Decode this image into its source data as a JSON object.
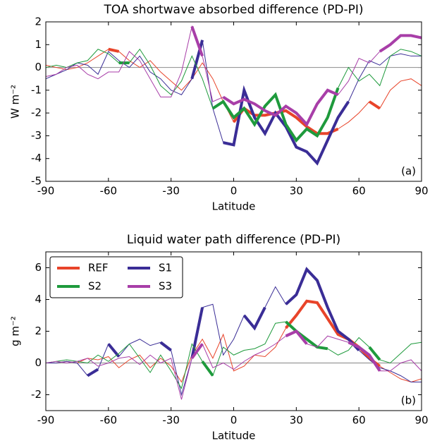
{
  "chart_data": [
    {
      "type": "line",
      "title": "TOA shortwave absorbed difference (PD-PI)",
      "xlabel": "Latitude",
      "ylabel": "W m⁻²",
      "annotation": "(a)",
      "x": [
        -90,
        -85,
        -80,
        -75,
        -70,
        -65,
        -60,
        -55,
        -50,
        -45,
        -40,
        -35,
        -30,
        -25,
        -20,
        -15,
        -10,
        -5,
        0,
        5,
        10,
        15,
        20,
        25,
        30,
        35,
        40,
        45,
        50,
        55,
        60,
        65,
        70,
        75,
        80,
        85,
        90
      ],
      "xlim": [
        -90,
        90
      ],
      "xticks": [
        -90,
        -60,
        -30,
        0,
        30,
        60,
        90
      ],
      "ylim": [
        -5,
        2
      ],
      "yticks": [
        -5,
        -4,
        -3,
        -2,
        -1,
        0,
        1,
        2
      ],
      "zero_line": true,
      "legend": false,
      "series": [
        {
          "name": "REF",
          "color": "#e8442a",
          "values": [
            0.1,
            0,
            -0.1,
            0,
            0.2,
            0.5,
            0.8,
            0.7,
            0.3,
            0,
            0.3,
            -0.2,
            -0.6,
            -1.0,
            -0.5,
            0.2,
            -0.5,
            -1.5,
            -2.4,
            -1.8,
            -2.1,
            -2.1,
            -2.0,
            -1.9,
            -2.2,
            -2.6,
            -2.9,
            -2.9,
            -2.7,
            -2.4,
            -2.0,
            -1.5,
            -1.8,
            -1.0,
            -0.6,
            -0.5,
            -0.8
          ],
          "bold": [
            [
              -60,
              -55
            ],
            [
              0,
              50
            ],
            [
              65,
              70
            ]
          ]
        },
        {
          "name": "S1",
          "color": "#3a2d96",
          "values": [
            -0.5,
            -0.3,
            -0.1,
            0.2,
            0.1,
            -0.3,
            0.7,
            0.3,
            0,
            0.5,
            -0.2,
            -0.5,
            -1.0,
            -1.2,
            -0.5,
            1.2,
            -1.8,
            -3.3,
            -3.4,
            -1.0,
            -2.2,
            -2.9,
            -2.0,
            -2.6,
            -3.5,
            -3.7,
            -4.2,
            -3.2,
            -2.2,
            -1.5,
            -0.5,
            0.3,
            0.1,
            0.5,
            0.6,
            0.5,
            0.5
          ],
          "bold": [
            [
              -20,
              -15
            ],
            [
              -5,
              55
            ]
          ]
        },
        {
          "name": "S2",
          "color": "#1e9a3c",
          "values": [
            0,
            0.1,
            0,
            0.2,
            0.3,
            0.8,
            0.6,
            0.2,
            0.2,
            0.8,
            0.1,
            -0.8,
            -1.2,
            -0.6,
            0.5,
            -0.5,
            -1.8,
            -1.5,
            -2.2,
            -1.8,
            -2.5,
            -1.7,
            -1.2,
            -2.5,
            -3.2,
            -2.7,
            -3.0,
            -2.2,
            -0.9,
            0,
            -0.6,
            -0.3,
            -0.8,
            0.5,
            0.8,
            0.7,
            0.5
          ],
          "bold": [
            [
              -55,
              -50
            ],
            [
              -10,
              50
            ]
          ]
        },
        {
          "name": "S3",
          "color": "#a83ea8",
          "values": [
            -0.4,
            -0.3,
            0,
            0.1,
            -0.3,
            -0.5,
            -0.2,
            -0.2,
            0.7,
            0.3,
            -0.5,
            -1.3,
            -1.3,
            -0.2,
            1.8,
            0.5,
            -1.5,
            -1.3,
            -1.6,
            -1.4,
            -1.6,
            -1.9,
            -2.1,
            -1.7,
            -2.0,
            -2.5,
            -1.6,
            -1.0,
            -1.2,
            -0.6,
            0.4,
            0.2,
            0.7,
            1.0,
            1.4,
            1.4,
            1.3
          ],
          "bold": [
            [
              -20,
              -15
            ],
            [
              -5,
              50
            ],
            [
              70,
              90
            ]
          ]
        }
      ]
    },
    {
      "type": "line",
      "title": "Liquid water path difference (PD-PI)",
      "xlabel": "Latitude",
      "ylabel": "g m⁻²",
      "annotation": "(b)",
      "x": [
        -90,
        -85,
        -80,
        -75,
        -70,
        -65,
        -60,
        -55,
        -50,
        -45,
        -40,
        -35,
        -30,
        -25,
        -20,
        -15,
        -10,
        -5,
        0,
        5,
        10,
        15,
        20,
        25,
        30,
        35,
        40,
        45,
        50,
        55,
        60,
        65,
        70,
        75,
        80,
        85,
        90
      ],
      "xlim": [
        -90,
        90
      ],
      "xticks": [
        -90,
        -60,
        -30,
        0,
        30,
        60,
        90
      ],
      "ylim": [
        -3,
        7
      ],
      "yticks": [
        -2,
        0,
        2,
        4,
        6
      ],
      "zero_line": true,
      "legend": "upper left",
      "series": [
        {
          "name": "REF",
          "color": "#e8442a",
          "values": [
            0,
            0,
            0.1,
            0,
            0.3,
            0.2,
            0.4,
            -0.3,
            0.2,
            0.5,
            -0.3,
            0.3,
            -0.2,
            -1.2,
            0.5,
            1.5,
            0.3,
            1.8,
            -0.5,
            -0.2,
            0.5,
            0.4,
            1.0,
            2.2,
            3.0,
            3.9,
            3.8,
            2.8,
            1.8,
            1.5,
            1.0,
            0.3,
            -0.2,
            -0.6,
            -1.0,
            -1.2,
            -1.0
          ],
          "bold": [
            [
              25,
              70
            ]
          ]
        },
        {
          "name": "S1",
          "color": "#3a2d96",
          "values": [
            0,
            0,
            0.1,
            0,
            -0.8,
            -0.4,
            1.2,
            0.4,
            1.2,
            1.5,
            1.1,
            1.3,
            0.8,
            -2.0,
            0.3,
            3.5,
            3.7,
            0.5,
            1.5,
            3.0,
            2.2,
            3.5,
            4.8,
            3.7,
            4.3,
            5.9,
            5.2,
            3.5,
            2.0,
            1.5,
            0.8,
            0.2,
            -0.3,
            -0.5,
            -0.8,
            -1.2,
            -1.2
          ],
          "bold": [
            [
              -70,
              -65
            ],
            [
              -60,
              -55
            ],
            [
              -35,
              -30
            ],
            [
              -20,
              -15
            ],
            [
              5,
              15
            ],
            [
              25,
              60
            ]
          ]
        },
        {
          "name": "S2",
          "color": "#1e9a3c",
          "values": [
            0,
            0.1,
            0.2,
            0.1,
            0,
            0.5,
            0.1,
            0.6,
            1.2,
            0.3,
            -0.6,
            0.5,
            -0.5,
            -1.6,
            1.2,
            0.1,
            -0.8,
            1.0,
            0.5,
            0.8,
            0.9,
            1.2,
            2.5,
            2.6,
            2.0,
            1.5,
            1.0,
            0.9,
            0.5,
            0.8,
            1.6,
            1.0,
            0.2,
            0,
            0.6,
            1.2,
            1.3
          ],
          "bold": [
            [
              -15,
              -10
            ],
            [
              25,
              45
            ],
            [
              65,
              70
            ]
          ]
        },
        {
          "name": "S3",
          "color": "#a83ea8",
          "values": [
            0,
            0.1,
            0,
            0.1,
            0.3,
            -0.2,
            0,
            0.3,
            0.4,
            -0.1,
            0.5,
            0,
            0.3,
            -2.3,
            0.3,
            1.2,
            -0.3,
            0,
            -0.4,
            0.1,
            0.5,
            0.8,
            1.2,
            1.7,
            2.0,
            1.2,
            1.0,
            1.7,
            1.5,
            1.3,
            1.0,
            0.5,
            -0.5,
            -0.5,
            0,
            0.2,
            -0.5
          ],
          "bold": [
            [
              -20,
              -15
            ],
            [
              25,
              35
            ],
            [
              55,
              70
            ]
          ]
        }
      ]
    }
  ]
}
